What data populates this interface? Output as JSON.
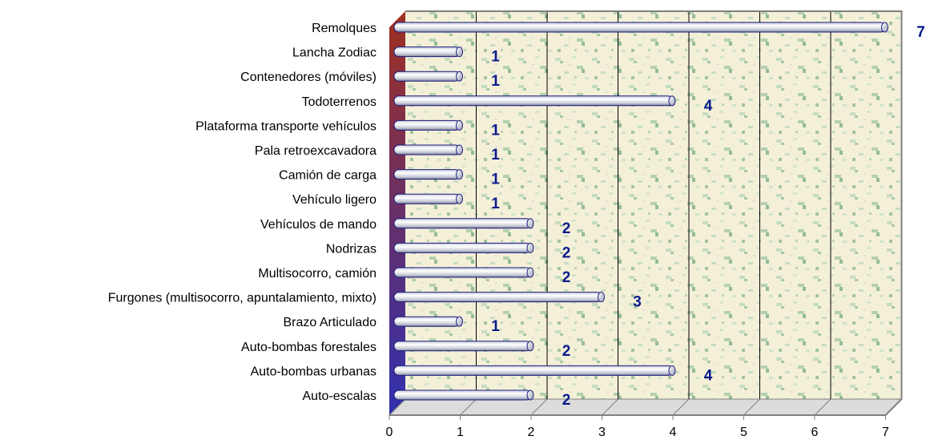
{
  "chart_data": {
    "type": "bar",
    "orientation": "horizontal",
    "categories": [
      "Remolques",
      "Lancha Zodiac",
      "Contenedores (móviles)",
      "Todoterrenos",
      "Plataforma transporte vehículos",
      "Pala retroexcavadora",
      "Camión de carga",
      "Vehículo ligero",
      "Vehículos de mando",
      "Nodrizas",
      "Multisocorro, camión",
      "Furgones (multisocorro, apuntalamiento, mixto)",
      "Brazo Articulado",
      "Auto-bombas forestales",
      "Auto-bombas urbanas",
      "Auto-escalas"
    ],
    "values": [
      7,
      1,
      1,
      4,
      1,
      1,
      1,
      1,
      2,
      2,
      2,
      3,
      1,
      2,
      4,
      2
    ],
    "value_labels": [
      "7",
      "1",
      "1",
      "4",
      "1",
      "1",
      "1",
      "1",
      "2",
      "2",
      "2",
      "3",
      "1",
      "2",
      "4",
      "2"
    ],
    "xlim": [
      0,
      7
    ],
    "xticks": [
      "0",
      "1",
      "2",
      "3",
      "4",
      "5",
      "6",
      "7"
    ],
    "title": "",
    "xlabel": "",
    "ylabel": "",
    "grid": "vertical",
    "legend": "none",
    "colors": {
      "bar_fill": "#c8ccd8",
      "bar_highlight": "#ffffff",
      "bar_shadow": "#7a7e90",
      "bar_outline": "#1a1a80",
      "value_label": "#0a1a8c",
      "wall_top": "#a03020",
      "wall_bottom": "#3030b0",
      "plot_background": "#f4f0d8",
      "gridline": "#000000"
    }
  }
}
